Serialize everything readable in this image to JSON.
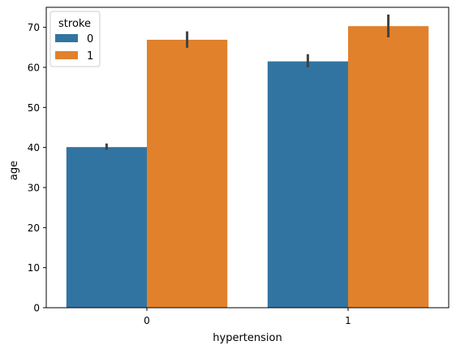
{
  "chart_data": {
    "type": "bar",
    "xlabel": "hypertension",
    "ylabel": "age",
    "categories": [
      "0",
      "1"
    ],
    "ylim": [
      0,
      75
    ],
    "yticks": [
      0,
      10,
      20,
      30,
      40,
      50,
      60,
      70
    ],
    "legend": {
      "title": "stroke",
      "placement": "top-left"
    },
    "series": [
      {
        "name": "0",
        "color": "#3274a1",
        "values": [
          40.1,
          61.5
        ],
        "error_low": [
          39.4,
          60.0
        ],
        "error_high": [
          41.0,
          63.3
        ]
      },
      {
        "name": "1",
        "color": "#e1812c",
        "values": [
          66.9,
          70.3
        ],
        "error_low": [
          64.9,
          67.5
        ],
        "error_high": [
          69.0,
          73.2
        ]
      }
    ],
    "errorbar_color": "#424242",
    "grid": false
  }
}
